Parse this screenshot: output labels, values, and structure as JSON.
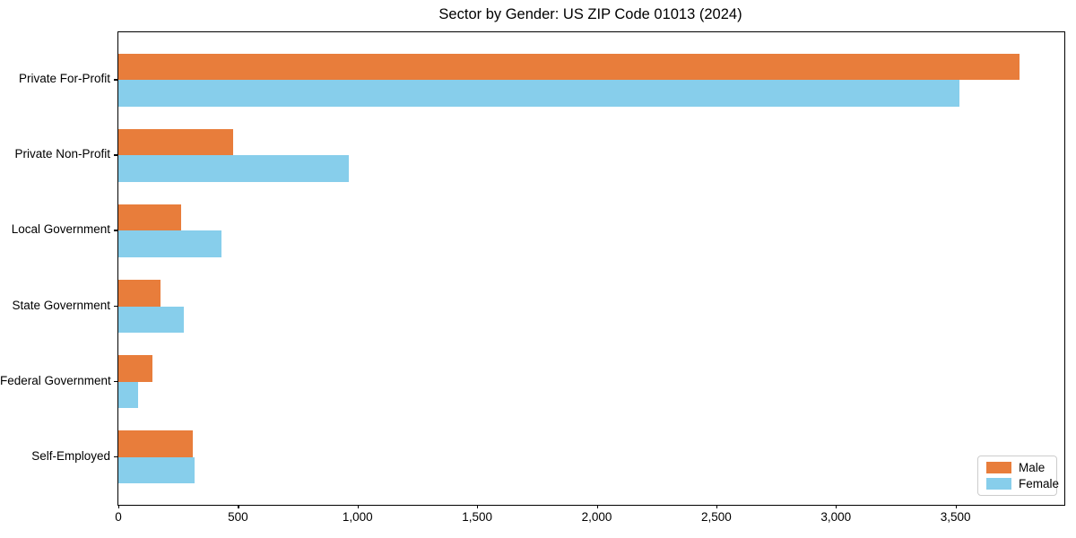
{
  "chart_data": {
    "type": "bar",
    "orientation": "horizontal",
    "title": "Sector by Gender: US ZIP Code 01013 (2024)",
    "categories": [
      "Private For-Profit",
      "Private Non-Profit",
      "Local Government",
      "State Government",
      "Federal Government",
      "Self-Employed"
    ],
    "series": [
      {
        "name": "Male",
        "color": "#e87d3b",
        "values": [
          3766,
          478,
          261,
          175,
          142,
          312
        ]
      },
      {
        "name": "Female",
        "color": "#87ceeb",
        "values": [
          3516,
          963,
          431,
          275,
          84,
          319
        ]
      }
    ],
    "xlabel": "",
    "ylabel": "",
    "xlim": [
      0,
      3955
    ],
    "xticks": [
      0,
      500,
      1000,
      1500,
      2000,
      2500,
      3000,
      3500
    ],
    "xtick_labels": [
      "0",
      "500",
      "1,000",
      "1,500",
      "2,000",
      "2,500",
      "3,000",
      "3,500"
    ],
    "grid": false,
    "legend": {
      "position": "lower-right",
      "entries": [
        {
          "label": "Male",
          "color": "#e87d3b"
        },
        {
          "label": "Female",
          "color": "#87ceeb"
        }
      ]
    }
  }
}
